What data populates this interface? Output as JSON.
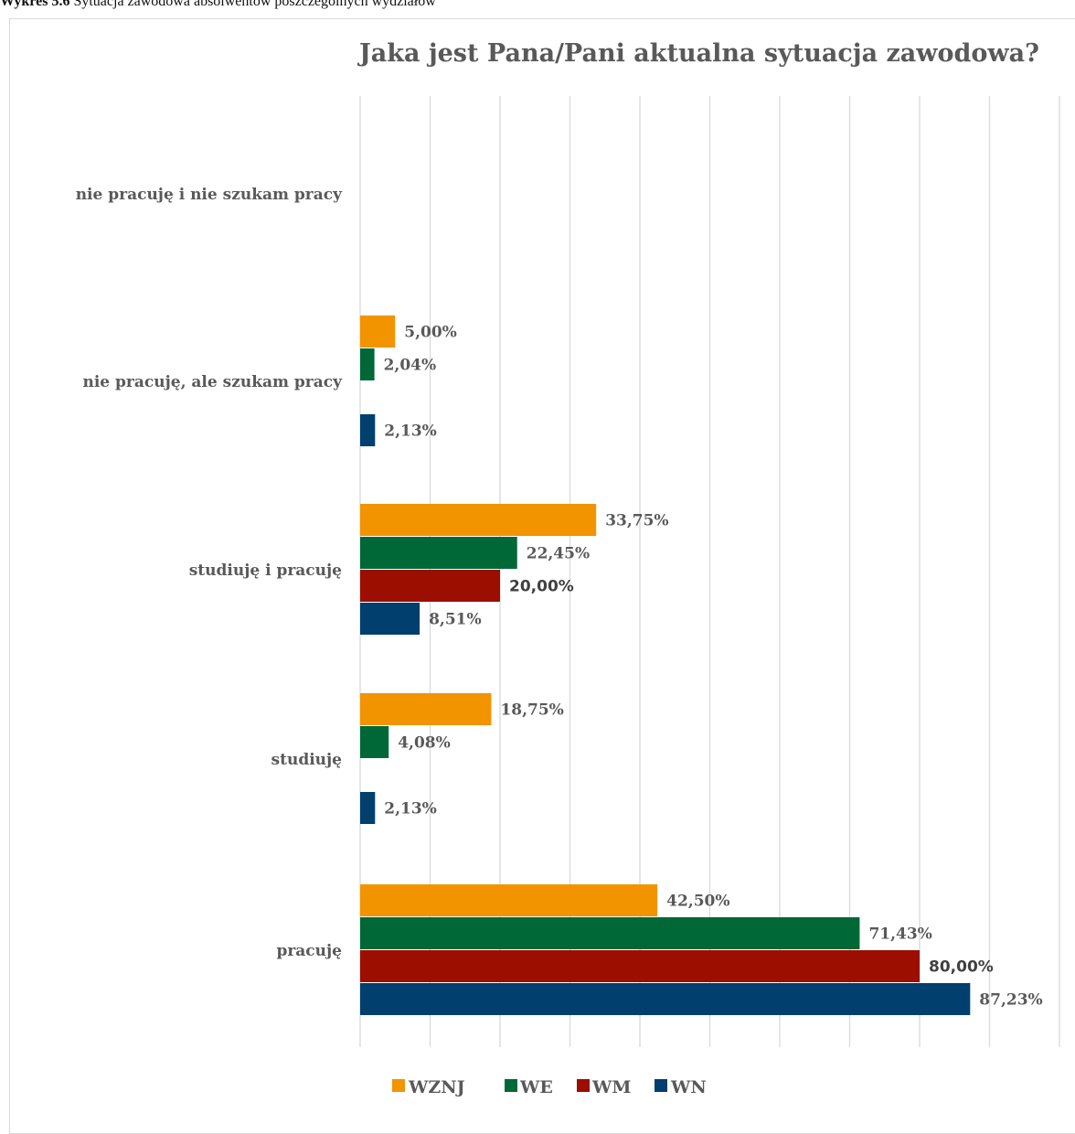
{
  "caption": {
    "bold": "Wykres 5.6",
    "text": " Sytuacja zawodowa absolwentów poszczególnych wydziałów"
  },
  "chart_data": {
    "type": "bar",
    "orientation": "horizontal",
    "title": "Jaka jest Pana/Pani aktualna sytuacja zawodowa?",
    "categories": [
      "nie pracuję i nie szukam pracy",
      "nie pracuję, ale szukam pracy",
      "studiuję i pracuję",
      "studiuję",
      "pracuję"
    ],
    "series": [
      {
        "name": "WZNJ",
        "color": "#f29400",
        "values": [
          null,
          5.0,
          33.75,
          18.75,
          42.5
        ],
        "labels": [
          "",
          "5,00%",
          "33,75%",
          "18,75%",
          "42,50%"
        ]
      },
      {
        "name": "WE",
        "color": "#006837",
        "values": [
          null,
          2.04,
          22.45,
          4.08,
          71.43
        ],
        "labels": [
          "",
          "2,04%",
          "22,45%",
          "4,08%",
          "71,43%"
        ]
      },
      {
        "name": "WM",
        "color": "#9b0e00",
        "values": [
          null,
          null,
          20.0,
          null,
          80.0
        ],
        "labels": [
          "",
          "",
          "20,00%",
          "",
          "80,00%"
        ]
      },
      {
        "name": "WN",
        "color": "#003f6e",
        "values": [
          null,
          2.13,
          8.51,
          2.13,
          87.23
        ],
        "labels": [
          "",
          "2,13%",
          "8,51%",
          "2,13%",
          "87,23%"
        ]
      }
    ],
    "xlim": [
      0,
      100
    ],
    "grid": true,
    "legend": "bottom"
  }
}
